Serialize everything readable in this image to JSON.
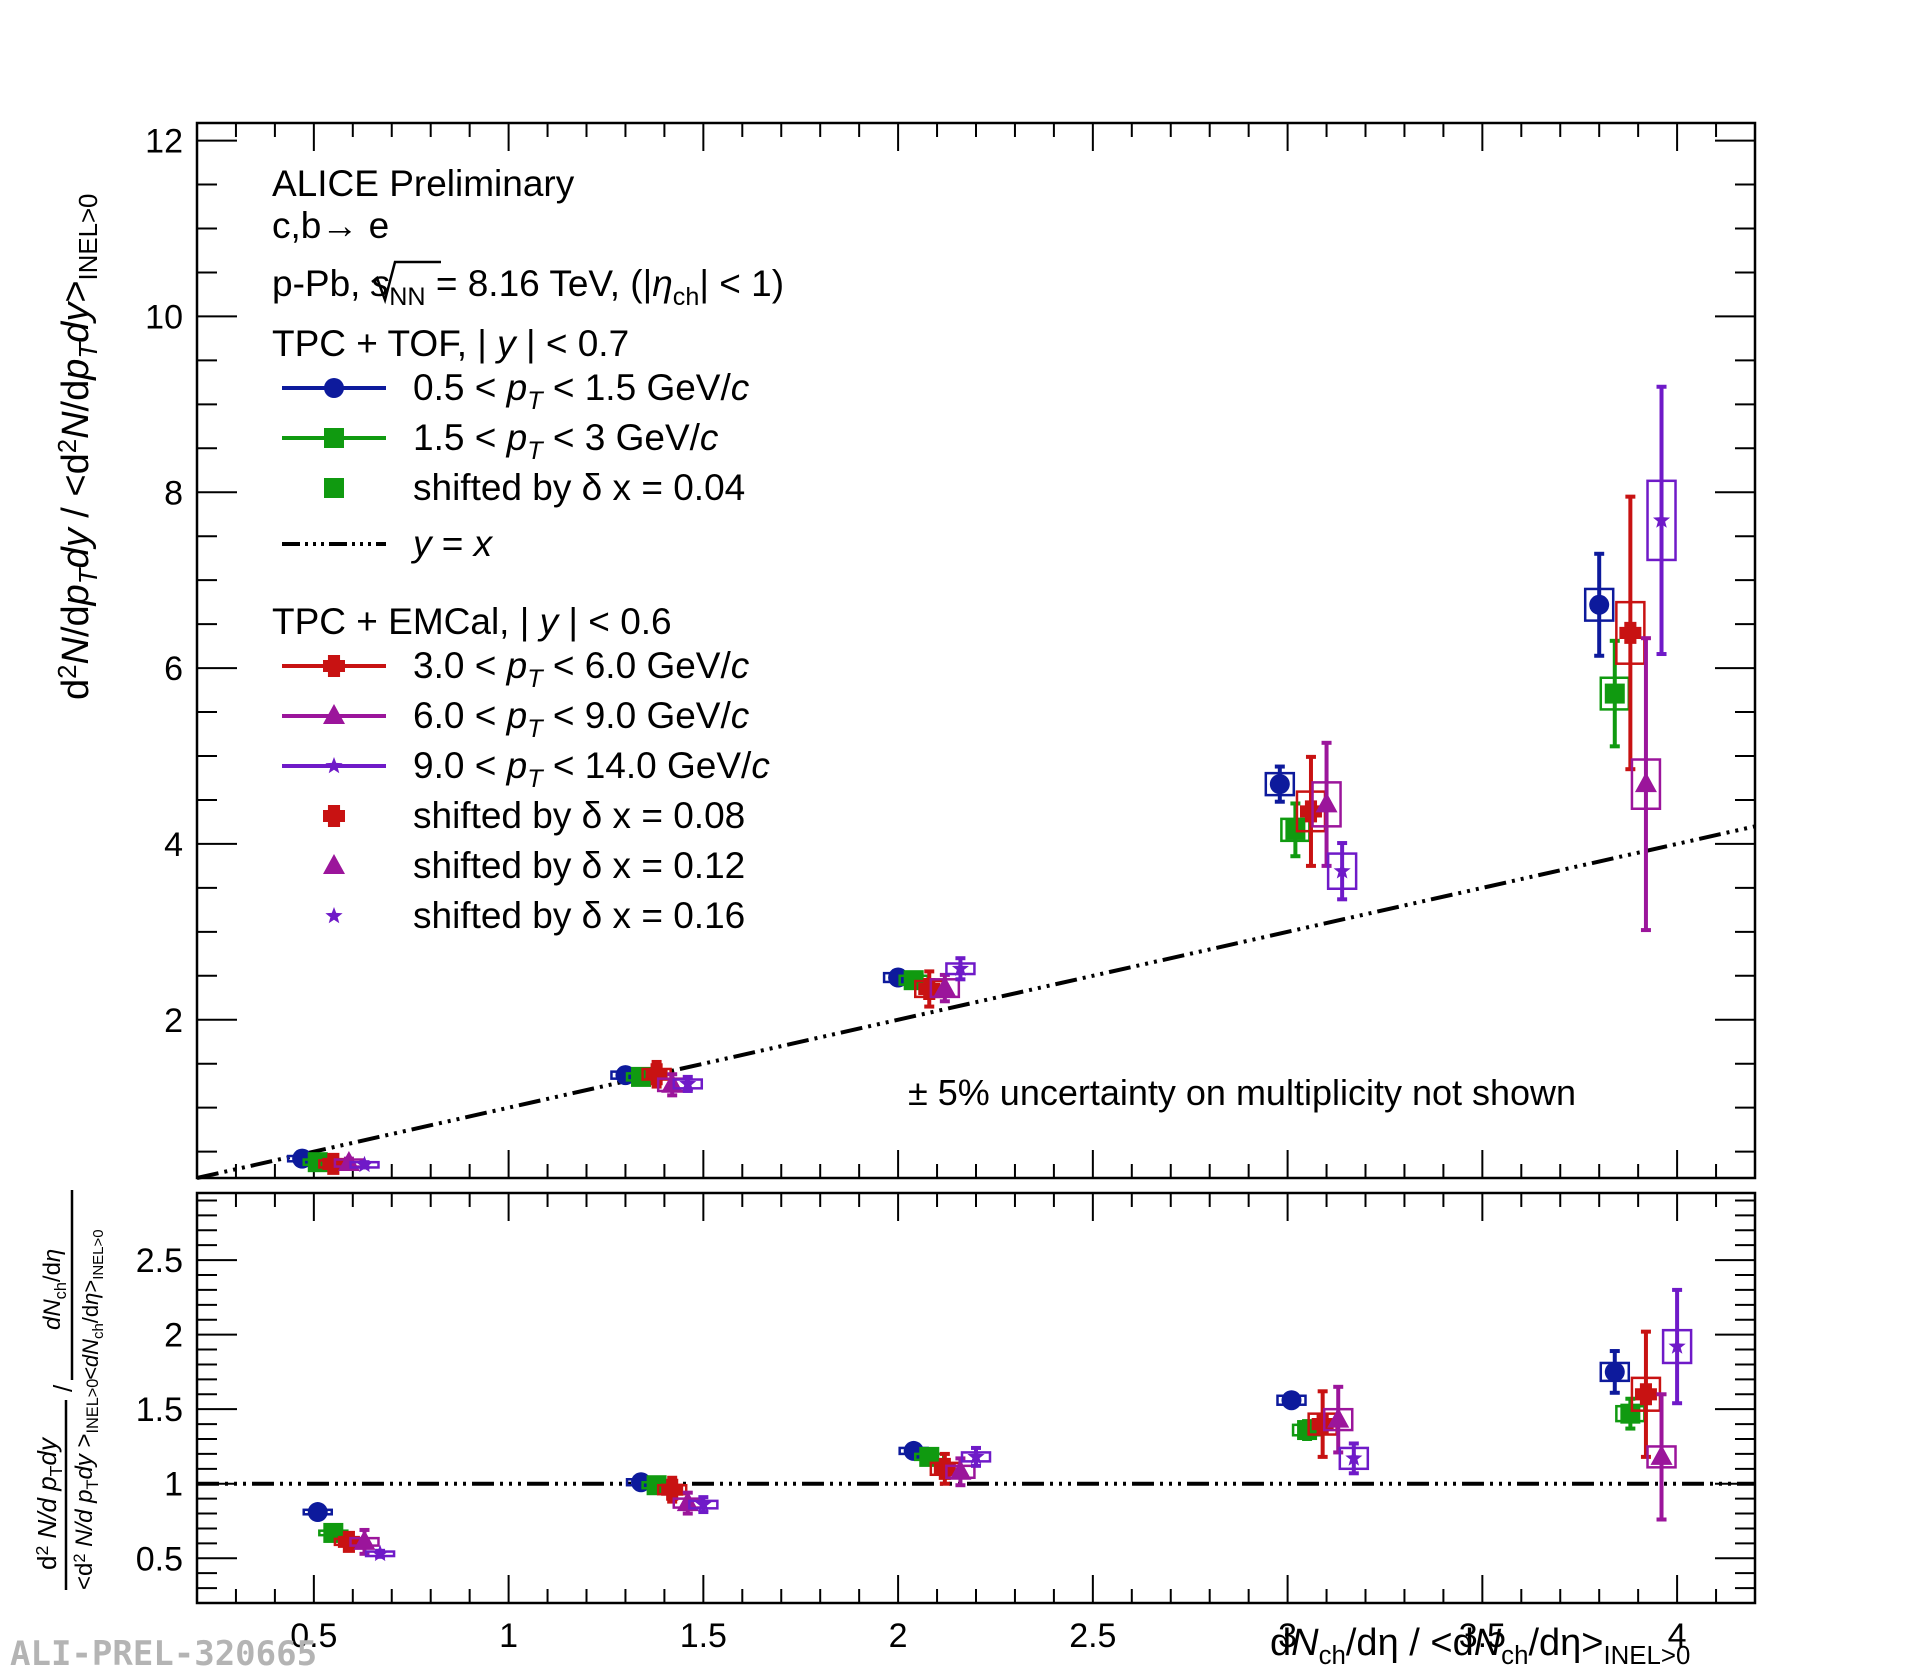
{
  "watermark": "ALI-PREL-320665",
  "chart_data": [
    {
      "type": "scatter",
      "panel": "top",
      "ylim": [
        0.2,
        12.2
      ],
      "xlim": [
        0.2,
        4.2
      ],
      "yticks": [
        2,
        4,
        6,
        8,
        10,
        12
      ],
      "ylabel_parts": [
        "d",
        "2",
        "N",
        "/d",
        "p",
        "T",
        "dy",
        "  / <d",
        "2",
        "N",
        "/d",
        "p",
        "T",
        "dy",
        ">",
        "INEL>0"
      ],
      "legend": {
        "title": "ALICE Preliminary",
        "process": [
          "c,b",
          "→ e"
        ],
        "system": [
          "p-Pb, ",
          "s",
          "NN",
          " = 8.16 TeV, (|",
          "η",
          "ch",
          "| < 1)"
        ],
        "group1_title": [
          "TPC + TOF, | ",
          "y",
          " | < 0.7"
        ],
        "group2_title": [
          "TPC + EMCal, | ",
          "y",
          " | < 0.6"
        ],
        "entries": [
          {
            "parts": [
              "0.5 < ",
              "p",
              "T",
              " < 1.5 GeV/",
              "c"
            ]
          },
          {
            "parts": [
              "1.5 < ",
              "p",
              "T",
              " < 3 GeV/",
              "c"
            ]
          },
          {
            "parts": [
              "shifted by ",
              "δ",
              " x = 0.04"
            ]
          },
          {
            "parts": [
              "y",
              " = ",
              "x"
            ]
          },
          {
            "parts": [
              "3.0 < ",
              "p",
              "T",
              " < 6.0 GeV/",
              "c"
            ]
          },
          {
            "parts": [
              "6.0 < ",
              "p",
              "T",
              " < 9.0 GeV/",
              "c"
            ]
          },
          {
            "parts": [
              "9.0 < ",
              "p",
              "T",
              " < 14.0 GeV/",
              "c"
            ]
          },
          {
            "parts": [
              "shifted by ",
              "δ",
              " x = 0.08"
            ]
          },
          {
            "parts": [
              "shifted by ",
              "δ",
              " x = 0.12"
            ]
          },
          {
            "parts": [
              "shifted by ",
              "δ",
              " x = 0.16"
            ]
          }
        ]
      },
      "annotation": "± 5% uncertainty on multiplicity not shown",
      "reference_line": {
        "label": "y = x",
        "from": [
          0.2,
          0.2
        ],
        "to": [
          4.2,
          4.2
        ]
      },
      "series": [
        {
          "name": "0.5 < pT < 1.5 GeV/c",
          "color": "#0d1a9c",
          "marker": "circle",
          "x": [
            0.47,
            1.3,
            2.0,
            2.98,
            3.8
          ],
          "y": [
            0.42,
            1.37,
            2.48,
            4.68,
            6.72
          ],
          "err": [
            0.04,
            0.06,
            0.06,
            0.2,
            0.58
          ],
          "box_h": [
            0.06,
            0.08,
            0.1,
            0.25,
            0.36
          ]
        },
        {
          "name": "1.5 < pT < 3 GeV/c",
          "color": "#109a10",
          "marker": "square",
          "x": [
            0.51,
            1.34,
            2.04,
            3.02,
            3.84
          ],
          "y": [
            0.38,
            1.35,
            2.45,
            4.16,
            5.71
          ],
          "err": [
            0.04,
            0.08,
            0.08,
            0.3,
            0.6
          ],
          "box_h": [
            0.06,
            0.08,
            0.1,
            0.25,
            0.36
          ]
        },
        {
          "name": "3.0 < pT < 6.0 GeV/c",
          "color": "#c81212",
          "marker": "cross",
          "x": [
            0.55,
            1.38,
            2.08,
            3.06,
            3.88
          ],
          "y": [
            0.36,
            1.38,
            2.35,
            4.37,
            6.4
          ],
          "err": [
            0.06,
            0.14,
            0.2,
            0.62,
            1.55
          ],
          "box_h": [
            0.08,
            0.12,
            0.18,
            0.45,
            0.7
          ]
        },
        {
          "name": "6.0 < pT < 9.0 GeV/c",
          "color": "#9b159b",
          "marker": "triangle",
          "x": [
            0.59,
            1.42,
            2.12,
            3.1,
            3.92
          ],
          "y": [
            0.37,
            1.26,
            2.36,
            4.45,
            4.68
          ],
          "err": [
            0.05,
            0.12,
            0.15,
            0.7,
            1.66
          ],
          "box_h": [
            0.08,
            0.14,
            0.2,
            0.5,
            0.56
          ]
        },
        {
          "name": "9.0 < pT < 14.0 GeV/c",
          "color": "#6f1ac8",
          "marker": "star",
          "x": [
            0.63,
            1.46,
            2.16,
            3.14,
            3.96
          ],
          "y": [
            0.35,
            1.27,
            2.58,
            3.69,
            7.68
          ],
          "err": [
            0.03,
            0.08,
            0.12,
            0.32,
            1.52
          ],
          "box_h": [
            0.06,
            0.1,
            0.12,
            0.4,
            0.9
          ]
        }
      ]
    },
    {
      "type": "scatter",
      "panel": "bottom",
      "xlim": [
        0.2,
        4.2
      ],
      "ylim": [
        0.2,
        2.95
      ],
      "xticks": [
        0.5,
        1,
        1.5,
        2,
        2.5,
        3,
        3.5,
        4
      ],
      "yticks": [
        0.5,
        1,
        1.5,
        2,
        2.5
      ],
      "xlabel_parts": [
        "d",
        "N",
        "ch",
        "/dη / <d",
        "N",
        "ch",
        "/dη>",
        "INEL>0"
      ],
      "ylabel_parts": {
        "left_num": [
          "d",
          "2",
          " N/d",
          " p",
          "T",
          "dy"
        ],
        "left_den": [
          "<d",
          "2",
          " N/d",
          " p",
          "T",
          "dy",
          " >",
          "INEL>0"
        ],
        "slash": "/",
        "right_num": [
          "dN",
          "ch",
          "/d",
          "η"
        ],
        "right_den": [
          "<dN",
          "ch",
          "/d",
          "η",
          ">",
          "INEL>0"
        ]
      },
      "reference_line": {
        "y": 1
      },
      "series": [
        {
          "name": "0.5 < pT < 1.5 GeV/c",
          "color": "#0d1a9c",
          "marker": "circle",
          "x": [
            0.51,
            1.34,
            2.04,
            3.01,
            3.84
          ],
          "y": [
            0.81,
            1.01,
            1.22,
            1.56,
            1.75
          ],
          "err": [
            0.02,
            0.03,
            0.03,
            0.04,
            0.14
          ],
          "box_h": [
            0.03,
            0.04,
            0.04,
            0.06,
            0.12
          ]
        },
        {
          "name": "1.5 < pT < 3 GeV/c",
          "color": "#109a10",
          "marker": "square",
          "x": [
            0.55,
            1.38,
            2.08,
            3.05,
            3.88
          ],
          "y": [
            0.67,
            0.99,
            1.18,
            1.36,
            1.47
          ],
          "err": [
            0.02,
            0.03,
            0.04,
            0.06,
            0.1
          ],
          "box_h": [
            0.03,
            0.04,
            0.04,
            0.07,
            0.1
          ]
        },
        {
          "name": "3.0 < pT < 6.0 GeV/c",
          "color": "#c81212",
          "marker": "cross",
          "x": [
            0.59,
            1.42,
            2.12,
            3.09,
            3.92
          ],
          "y": [
            0.61,
            0.96,
            1.1,
            1.4,
            1.6
          ],
          "err": [
            0.04,
            0.08,
            0.1,
            0.22,
            0.42
          ],
          "box_h": [
            0.04,
            0.06,
            0.08,
            0.14,
            0.22
          ]
        },
        {
          "name": "6.0 < pT < 9.0 GeV/c",
          "color": "#9b159b",
          "marker": "triangle",
          "x": [
            0.63,
            1.46,
            2.16,
            3.13,
            3.96
          ],
          "y": [
            0.61,
            0.87,
            1.08,
            1.43,
            1.18
          ],
          "err": [
            0.08,
            0.07,
            0.09,
            0.22,
            0.42
          ],
          "box_h": [
            0.05,
            0.06,
            0.08,
            0.14,
            0.14
          ]
        },
        {
          "name": "9.0 < pT < 14.0 GeV/c",
          "color": "#6f1ac8",
          "marker": "star",
          "x": [
            0.67,
            1.5,
            2.2,
            3.17,
            4.0
          ],
          "y": [
            0.53,
            0.86,
            1.18,
            1.17,
            1.92
          ],
          "err": [
            0.02,
            0.05,
            0.06,
            0.1,
            0.38
          ],
          "box_h": [
            0.03,
            0.05,
            0.06,
            0.14,
            0.22
          ]
        }
      ]
    }
  ]
}
